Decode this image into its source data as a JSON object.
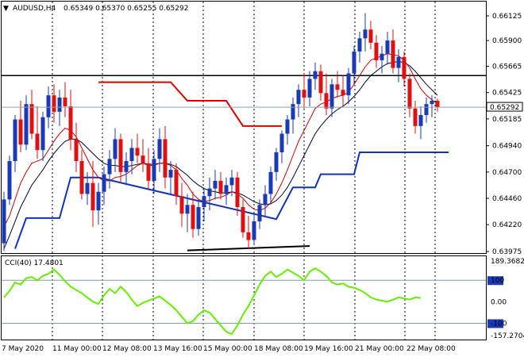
{
  "chart_data": [
    {
      "type": "candlestick",
      "symbol_header": "AUDUSD,H4",
      "ohlc_header": "0.65349 0.65370 0.65255 0.65292",
      "current_price_label": "0.65292",
      "current_price": 0.65292,
      "colors": {
        "bull": "#1a3ab5",
        "bear": "#dd1111",
        "ma_fast": "#cc0000",
        "ma_slow": "#000033",
        "stop_upper": "#dd0000",
        "stop_lower": "#1133bb",
        "hline": "#000000",
        "price_line": "#8aa0b0",
        "grid": "#000000"
      },
      "y_ticks": [
        "0.66125",
        "0.65900",
        "0.65665",
        "0.65425",
        "0.65185",
        "0.64940",
        "0.64700",
        "0.64460",
        "0.64220",
        "0.63975"
      ],
      "ylim": [
        0.63975,
        0.66125
      ],
      "x_labels": [
        "7 May 2020",
        "11 May 00:00",
        "12 May 08:00",
        "13 May 16:00",
        "15 May 00:00",
        "18 May 08:00",
        "19 May 16:00",
        "21 May 00:00",
        "22 May 08:00"
      ],
      "horizontal_level": 0.6558,
      "candles": [
        [
          0.6405,
          0.6452,
          0.6398,
          0.6445
        ],
        [
          0.6445,
          0.6485,
          0.644,
          0.648
        ],
        [
          0.648,
          0.6522,
          0.647,
          0.6518
        ],
        [
          0.6518,
          0.6535,
          0.6488,
          0.6495
        ],
        [
          0.6495,
          0.654,
          0.649,
          0.6532
        ],
        [
          0.6532,
          0.6545,
          0.65,
          0.6505
        ],
        [
          0.6505,
          0.653,
          0.6482,
          0.649
        ],
        [
          0.649,
          0.6525,
          0.648,
          0.652
        ],
        [
          0.652,
          0.6548,
          0.651,
          0.654
        ],
        [
          0.654,
          0.655,
          0.6515,
          0.6525
        ],
        [
          0.6525,
          0.6545,
          0.6512,
          0.6538
        ],
        [
          0.6538,
          0.6552,
          0.652,
          0.653
        ],
        [
          0.653,
          0.6545,
          0.649,
          0.65
        ],
        [
          0.65,
          0.6515,
          0.647,
          0.648
        ],
        [
          0.648,
          0.649,
          0.6445,
          0.645
        ],
        [
          0.645,
          0.647,
          0.644,
          0.646
        ],
        [
          0.646,
          0.648,
          0.642,
          0.6435
        ],
        [
          0.6435,
          0.646,
          0.6422,
          0.6452
        ],
        [
          0.6452,
          0.6475,
          0.644,
          0.6468
        ],
        [
          0.6468,
          0.649,
          0.6455,
          0.6482
        ],
        [
          0.6482,
          0.651,
          0.647,
          0.65
        ],
        [
          0.65,
          0.6505,
          0.646,
          0.647
        ],
        [
          0.647,
          0.6488,
          0.6458,
          0.648
        ],
        [
          0.648,
          0.65,
          0.6468,
          0.6492
        ],
        [
          0.6492,
          0.6505,
          0.6478,
          0.6485
        ],
        [
          0.6485,
          0.65,
          0.647,
          0.6478
        ],
        [
          0.6478,
          0.6492,
          0.6455,
          0.6462
        ],
        [
          0.6462,
          0.649,
          0.645,
          0.6482
        ],
        [
          0.6482,
          0.651,
          0.647,
          0.65
        ],
        [
          0.65,
          0.6512,
          0.6455,
          0.6465
        ],
        [
          0.6465,
          0.648,
          0.645,
          0.6472
        ],
        [
          0.6472,
          0.6478,
          0.644,
          0.6448
        ],
        [
          0.6448,
          0.646,
          0.642,
          0.6432
        ],
        [
          0.6432,
          0.645,
          0.6415,
          0.644
        ],
        [
          0.644,
          0.6452,
          0.641,
          0.6418
        ],
        [
          0.6418,
          0.6445,
          0.6412,
          0.6438
        ],
        [
          0.6438,
          0.6455,
          0.6425,
          0.6448
        ],
        [
          0.6448,
          0.6465,
          0.6435,
          0.6455
        ],
        [
          0.6455,
          0.6472,
          0.6445,
          0.6462
        ],
        [
          0.6462,
          0.647,
          0.6445,
          0.645
        ],
        [
          0.645,
          0.6465,
          0.644,
          0.6458
        ],
        [
          0.6458,
          0.6472,
          0.6448,
          0.6465
        ],
        [
          0.6465,
          0.647,
          0.643,
          0.6438
        ],
        [
          0.6438,
          0.6445,
          0.641,
          0.6415
        ],
        [
          0.6415,
          0.643,
          0.64,
          0.6408
        ],
        [
          0.6408,
          0.6432,
          0.6404,
          0.6425
        ],
        [
          0.6425,
          0.6445,
          0.6418,
          0.644
        ],
        [
          0.644,
          0.6458,
          0.643,
          0.645
        ],
        [
          0.645,
          0.6475,
          0.6442,
          0.647
        ],
        [
          0.647,
          0.6492,
          0.6462,
          0.6488
        ],
        [
          0.6488,
          0.6508,
          0.6478,
          0.6505
        ],
        [
          0.6505,
          0.6522,
          0.6495,
          0.6518
        ],
        [
          0.6518,
          0.6538,
          0.6505,
          0.6532
        ],
        [
          0.6532,
          0.655,
          0.652,
          0.6545
        ],
        [
          0.6545,
          0.656,
          0.6528,
          0.6538
        ],
        [
          0.6538,
          0.6562,
          0.653,
          0.6555
        ],
        [
          0.6555,
          0.657,
          0.6545,
          0.6562
        ],
        [
          0.6562,
          0.6568,
          0.6535,
          0.6542
        ],
        [
          0.6542,
          0.656,
          0.6522,
          0.6528
        ],
        [
          0.6528,
          0.6555,
          0.652,
          0.655
        ],
        [
          0.655,
          0.6562,
          0.6538,
          0.6545
        ],
        [
          0.6545,
          0.6558,
          0.653,
          0.654
        ],
        [
          0.654,
          0.6565,
          0.6532,
          0.656
        ],
        [
          0.656,
          0.6585,
          0.655,
          0.658
        ],
        [
          0.658,
          0.6598,
          0.657,
          0.6592
        ],
        [
          0.6592,
          0.6615,
          0.658,
          0.66
        ],
        [
          0.66,
          0.6608,
          0.6582,
          0.6588
        ],
        [
          0.6588,
          0.6595,
          0.6565,
          0.6572
        ],
        [
          0.6572,
          0.6585,
          0.656,
          0.6578
        ],
        [
          0.6578,
          0.6598,
          0.6568,
          0.659
        ],
        [
          0.659,
          0.66,
          0.656,
          0.6565
        ],
        [
          0.6565,
          0.6582,
          0.6552,
          0.6575
        ],
        [
          0.6575,
          0.658,
          0.6548,
          0.6555
        ],
        [
          0.6555,
          0.656,
          0.652,
          0.6528
        ],
        [
          0.6528,
          0.6535,
          0.6505,
          0.6512
        ],
        [
          0.6512,
          0.653,
          0.65,
          0.6522
        ],
        [
          0.6522,
          0.6538,
          0.6515,
          0.6532
        ],
        [
          0.6532,
          0.654,
          0.652,
          0.6535
        ],
        [
          0.6535,
          0.6537,
          0.6525,
          0.6529
        ]
      ],
      "ma_fast": [
        0.642,
        0.643,
        0.6445,
        0.646,
        0.647,
        0.6478,
        0.648,
        0.6482,
        0.649,
        0.6498,
        0.6505,
        0.651,
        0.6508,
        0.6502,
        0.6492,
        0.6482,
        0.6472,
        0.6465,
        0.6462,
        0.6462,
        0.6465,
        0.6466,
        0.6468,
        0.6472,
        0.6476,
        0.6478,
        0.6476,
        0.6476,
        0.6478,
        0.6478,
        0.6476,
        0.6472,
        0.6464,
        0.6458,
        0.645,
        0.6445,
        0.6443,
        0.6444,
        0.6446,
        0.6447,
        0.6449,
        0.6452,
        0.645,
        0.6446,
        0.644,
        0.6436,
        0.6435,
        0.6437,
        0.6442,
        0.645,
        0.646,
        0.6472,
        0.6485,
        0.6498,
        0.6508,
        0.6518,
        0.6528,
        0.6532,
        0.6534,
        0.6537,
        0.6539,
        0.654,
        0.6543,
        0.655,
        0.6558,
        0.6566,
        0.6572,
        0.6574,
        0.6576,
        0.6578,
        0.6577,
        0.6576,
        0.6572,
        0.6565,
        0.6555,
        0.6546,
        0.654,
        0.6536,
        0.6532
      ],
      "ma_slow": [
        0.64,
        0.6412,
        0.6425,
        0.6438,
        0.6448,
        0.6458,
        0.6465,
        0.6472,
        0.648,
        0.6487,
        0.6493,
        0.6498,
        0.65,
        0.65,
        0.6497,
        0.6492,
        0.6487,
        0.6482,
        0.6478,
        0.6476,
        0.6476,
        0.6475,
        0.6475,
        0.6476,
        0.6477,
        0.6478,
        0.6477,
        0.6477,
        0.6478,
        0.6478,
        0.6477,
        0.6475,
        0.6471,
        0.6467,
        0.6462,
        0.6458,
        0.6455,
        0.6453,
        0.6452,
        0.6451,
        0.6451,
        0.6452,
        0.6451,
        0.6449,
        0.6446,
        0.6443,
        0.6441,
        0.644,
        0.6441,
        0.6444,
        0.6449,
        0.6456,
        0.6465,
        0.6475,
        0.6485,
        0.6495,
        0.6505,
        0.6512,
        0.6518,
        0.6523,
        0.6527,
        0.653,
        0.6534,
        0.6539,
        0.6545,
        0.6552,
        0.6558,
        0.6562,
        0.6566,
        0.6569,
        0.657,
        0.6571,
        0.657,
        0.6567,
        0.6562,
        0.6556,
        0.655,
        0.6545,
        0.654
      ],
      "stop_upper": [
        [
          17,
          0.6552
        ],
        [
          30,
          0.6552
        ],
        [
          33,
          0.6535
        ],
        [
          40,
          0.6535
        ],
        [
          43,
          0.6512
        ],
        [
          50,
          0.6512
        ]
      ],
      "stop_lower": [
        [
          2,
          0.64
        ],
        [
          4,
          0.6428
        ],
        [
          10,
          0.6428
        ],
        [
          12,
          0.6465
        ],
        [
          17,
          0.6465
        ],
        [
          49,
          0.6427
        ],
        [
          52,
          0.6456
        ],
        [
          56,
          0.6456
        ],
        [
          57,
          0.6468
        ],
        [
          63,
          0.6468
        ],
        [
          64,
          0.6488
        ],
        [
          80,
          0.6488
        ]
      ],
      "bottom_line": [
        [
          33,
          0.63985
        ],
        [
          55,
          0.64025
        ]
      ]
    },
    {
      "type": "line",
      "indicator_label": "CCI(40) 17.4801",
      "ylim": [
        -157.2704,
        189.3682
      ],
      "y_ticks": [
        "189.3682",
        "100",
        "0.00",
        "-100",
        "-157.2704"
      ],
      "levels": [
        100,
        -100
      ],
      "series": [
        {
          "color": "#66ee00",
          "values": [
            20,
            50,
            90,
            80,
            110,
            115,
            100,
            120,
            130,
            150,
            125,
            95,
            70,
            55,
            40,
            20,
            0,
            -10,
            30,
            60,
            40,
            70,
            45,
            10,
            -20,
            -5,
            5,
            15,
            25,
            5,
            -15,
            -40,
            -70,
            -100,
            -90,
            -60,
            -40,
            -50,
            -80,
            -110,
            -140,
            -150,
            -110,
            -60,
            -20,
            30,
            80,
            120,
            140,
            115,
            130,
            150,
            135,
            120,
            100,
            140,
            155,
            140,
            120,
            90,
            80,
            85,
            70,
            65,
            55,
            40,
            20,
            10,
            5,
            0,
            10,
            20,
            15,
            10,
            20,
            17.48
          ]
        }
      ]
    }
  ]
}
